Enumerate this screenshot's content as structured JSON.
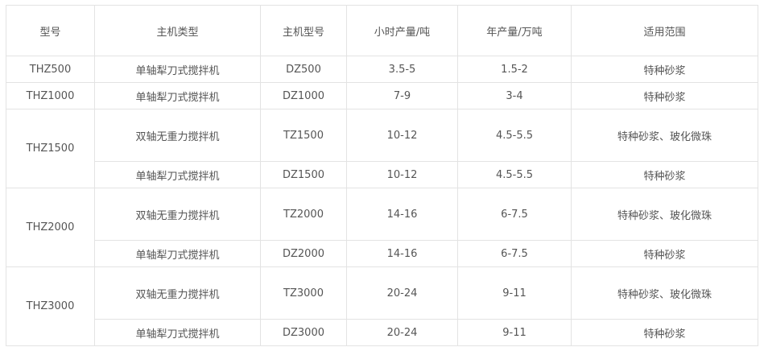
{
  "headers": [
    "型号",
    "主机类型",
    "主机型号",
    "小时产量/吨",
    "年产量/万吨",
    "适用范围"
  ],
  "rows": [
    {
      "model": "THZ500",
      "type": "单轴犁刀式搅拌机",
      "host": "DZ500",
      "hour": "3.5-5",
      "year": "1.5-2",
      "scope": "特种砂浆"
    },
    {
      "model": "THZ1000",
      "type": "单轴犁刀式搅拌机",
      "host": "DZ1000",
      "hour": "7-9",
      "year": "3-4",
      "scope": "特种砂浆"
    },
    {
      "model": "THZ1500",
      "type": "双轴无重力搅拌机",
      "host": "TZ1500",
      "hour": "10-12",
      "year": "4.5-5.5",
      "scope": "特种砂浆、玻化微珠"
    },
    {
      "type": "单轴犁刀式搅拌机",
      "host": "DZ1500",
      "hour": "10-12",
      "year": "4.5-5.5",
      "scope": "特种砂浆"
    },
    {
      "model": "THZ2000",
      "type": "双轴无重力搅拌机",
      "host": "TZ2000",
      "hour": "14-16",
      "year": "6-7.5",
      "scope": "特种砂浆、玻化微珠"
    },
    {
      "type": "单轴犁刀式搅拌机",
      "host": "DZ2000",
      "hour": "14-16",
      "year": "6-7.5",
      "scope": "特种砂浆"
    },
    {
      "model": "THZ3000",
      "type": "双轴无重力搅拌机",
      "host": "TZ3000",
      "hour": "20-24",
      "year": "9-11",
      "scope": "特种砂浆、玻化微珠"
    },
    {
      "type": "单轴犁刀式搅拌机",
      "host": "DZ3000",
      "hour": "20-24",
      "year": "9-11",
      "scope": "特种砂浆"
    }
  ]
}
